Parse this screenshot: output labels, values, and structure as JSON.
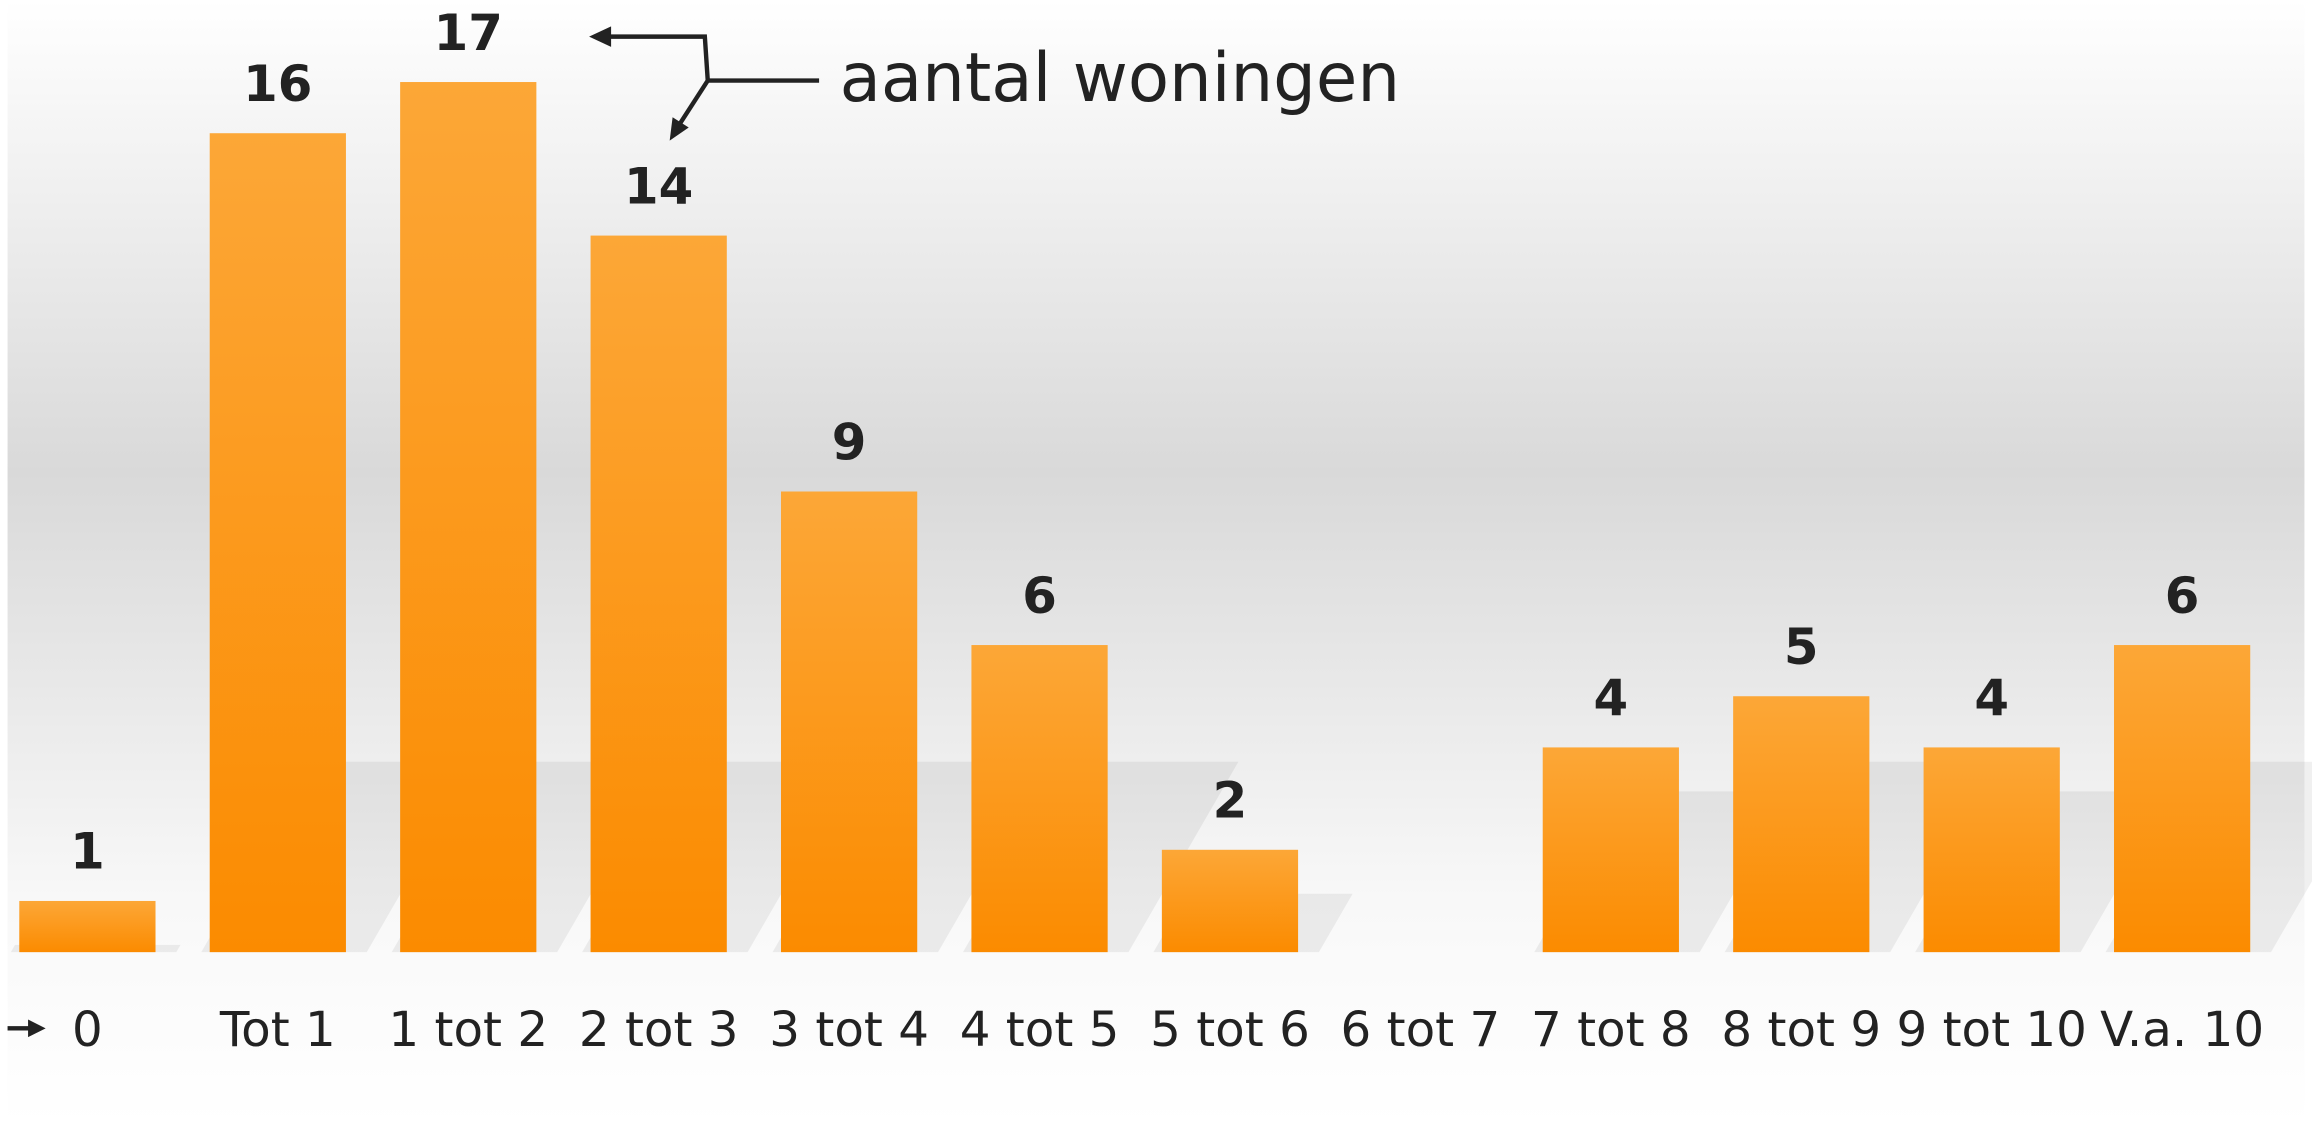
{
  "chart_data": {
    "type": "bar",
    "annotation": "aantal woningen",
    "categories": [
      "0",
      "Tot 1",
      "1 tot 2",
      "2 tot 3",
      "3 tot 4",
      "4 tot 5",
      "5 tot 6",
      "6 tot 7",
      "7 tot 8",
      "8 tot 9",
      "9 tot 10",
      "V.a. 10"
    ],
    "values": [
      1,
      16,
      17,
      14,
      9,
      6,
      2,
      null,
      4,
      5,
      4,
      6
    ],
    "color": "#fb9a1e"
  }
}
